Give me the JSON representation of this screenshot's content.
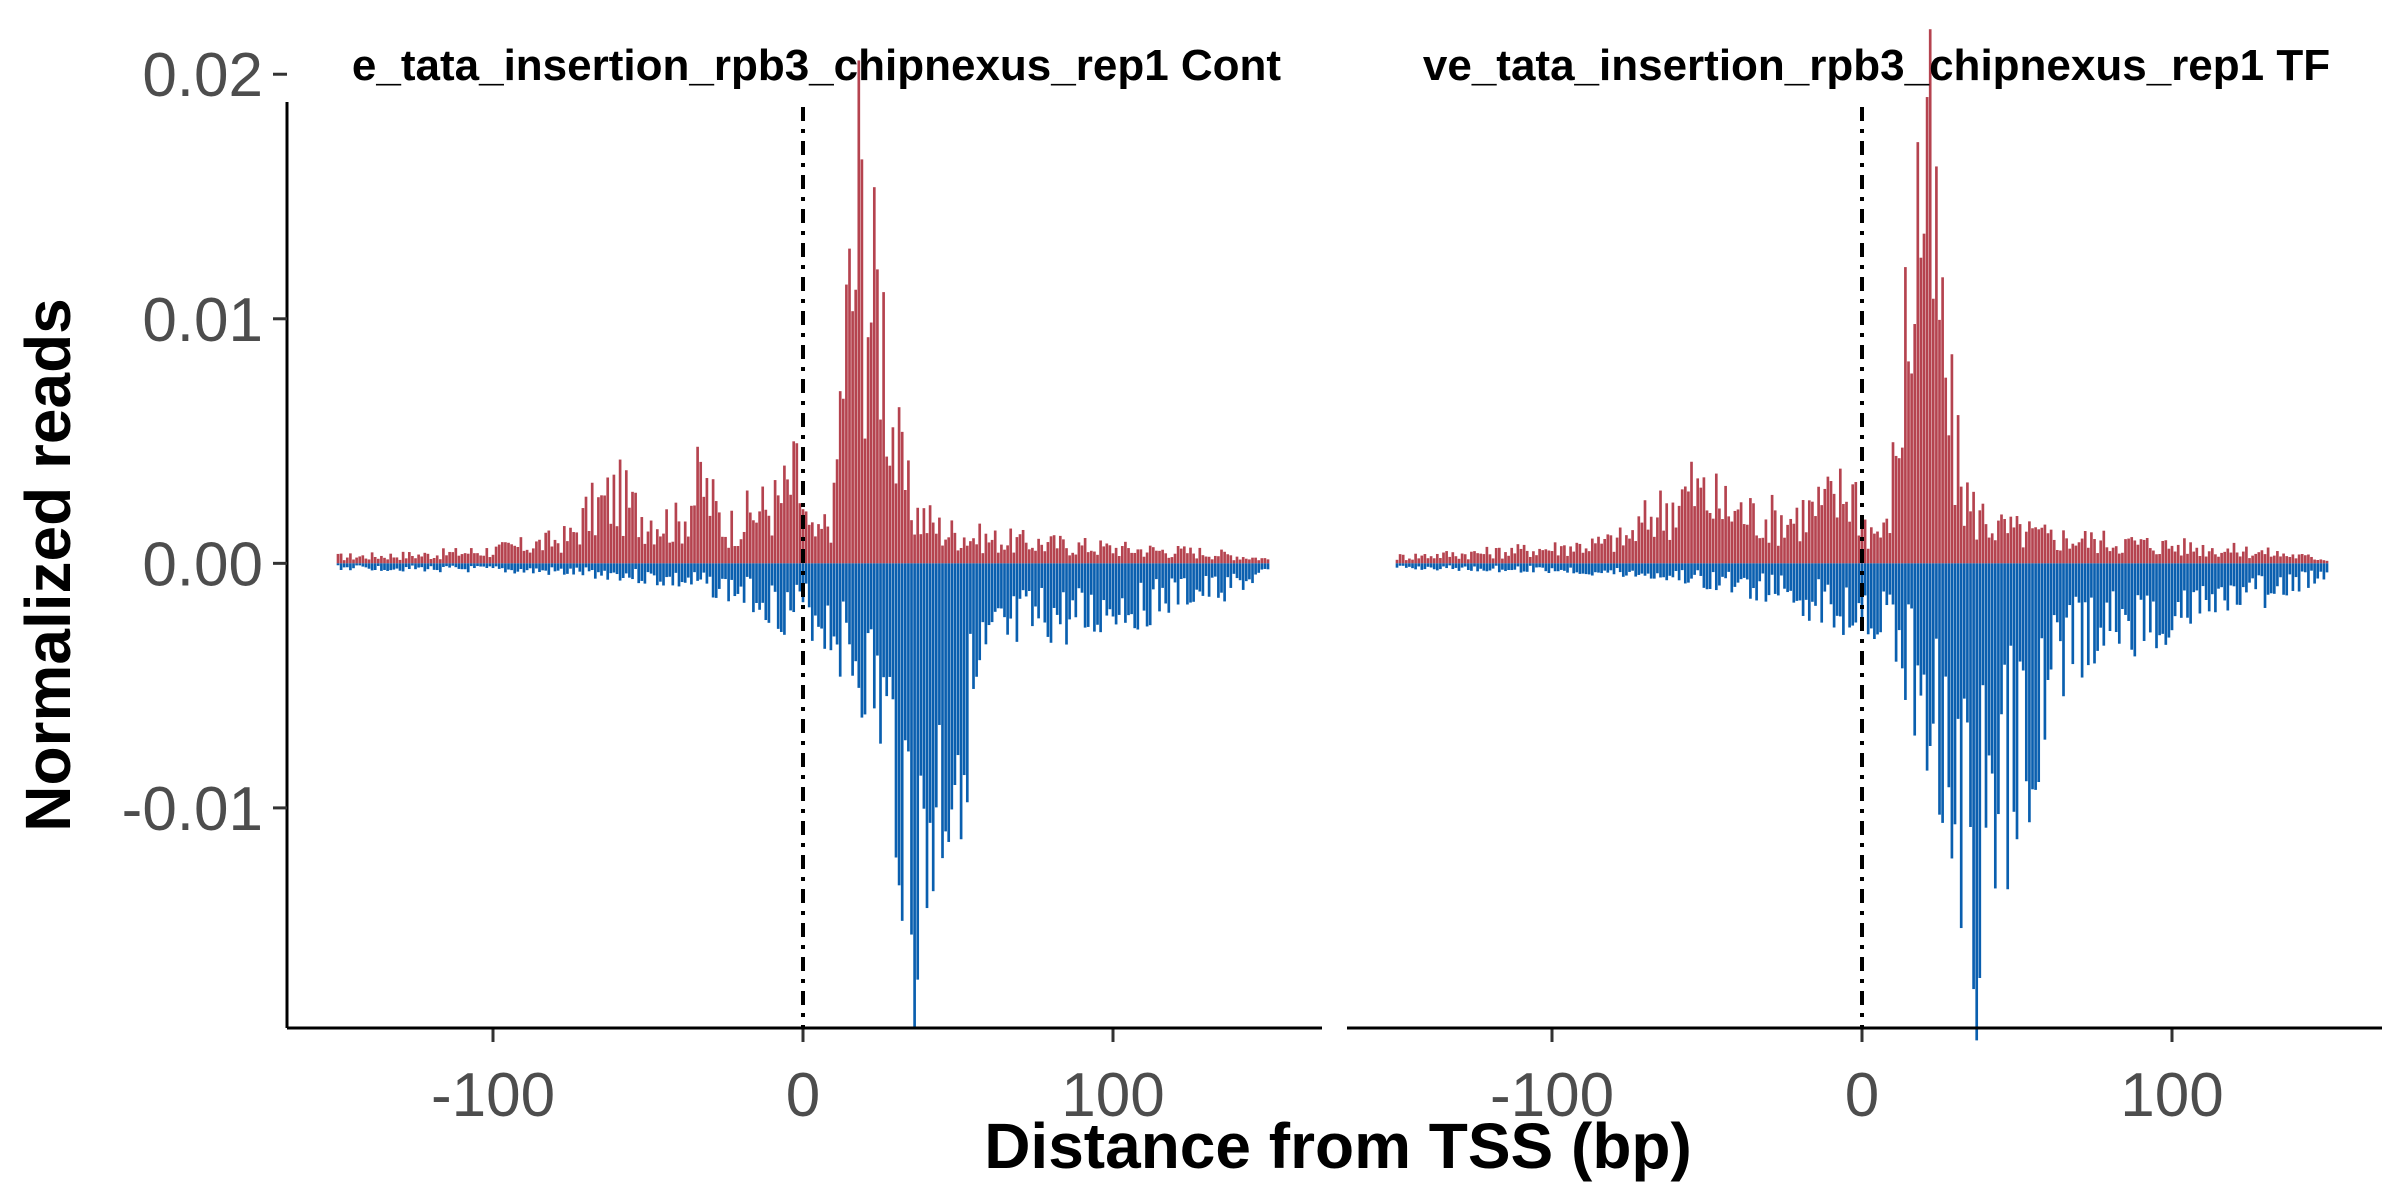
{
  "chart_data": {
    "type": "bar",
    "xlabel": "Distance from TSS (bp)",
    "ylabel": "Normalized reads",
    "ylim": [
      -0.019,
      0.0205
    ],
    "xlim": [
      -167,
      167
    ],
    "yticks": [
      0.02,
      0.01,
      0.0,
      -0.01
    ],
    "ytick_labels": [
      "0.02",
      "0.01",
      "0.00",
      "-0.01"
    ],
    "xticks": [
      -100,
      0,
      100
    ],
    "xtick_labels": [
      "-100",
      "0",
      "100"
    ],
    "reference_line_x": 0,
    "colors": {
      "positive_strand": "#B5434F",
      "negative_strand": "#0A5FAF"
    },
    "grid": false,
    "legend": "none",
    "panels": [
      {
        "title": "e_tata_insertion_rpb3_chipnexus_rep1 Cont",
        "positive_profile": [
          [
            -150,
            0.0003
          ],
          [
            -120,
            0.0004
          ],
          [
            -100,
            0.0006
          ],
          [
            -85,
            0.0009
          ],
          [
            -75,
            0.0012
          ],
          [
            -70,
            0.0022
          ],
          [
            -60,
            0.0032
          ],
          [
            -55,
            0.0025
          ],
          [
            -50,
            0.0022
          ],
          [
            -40,
            0.0018
          ],
          [
            -33,
            0.0038
          ],
          [
            -25,
            0.0016
          ],
          [
            -15,
            0.0024
          ],
          [
            -8,
            0.0028
          ],
          [
            -2,
            0.004
          ],
          [
            2,
            0.0014
          ],
          [
            5,
            0.0012
          ],
          [
            10,
            0.0025
          ],
          [
            13,
            0.0095
          ],
          [
            16,
            0.0125
          ],
          [
            18,
            0.0168
          ],
          [
            20,
            0.0145
          ],
          [
            23,
            0.0115
          ],
          [
            25,
            0.0128
          ],
          [
            27,
            0.0092
          ],
          [
            30,
            0.0052
          ],
          [
            35,
            0.0025
          ],
          [
            45,
            0.0015
          ],
          [
            60,
            0.0011
          ],
          [
            80,
            0.0009
          ],
          [
            100,
            0.0007
          ],
          [
            130,
            0.0005
          ],
          [
            150,
            0.0002
          ]
        ],
        "negative_profile": [
          [
            -150,
            -0.0002
          ],
          [
            -100,
            -0.0003
          ],
          [
            -60,
            -0.0005
          ],
          [
            -30,
            -0.001
          ],
          [
            -15,
            -0.0015
          ],
          [
            -5,
            -0.0022
          ],
          [
            0,
            -0.002
          ],
          [
            5,
            -0.0025
          ],
          [
            10,
            -0.003
          ],
          [
            15,
            -0.004
          ],
          [
            20,
            -0.005
          ],
          [
            25,
            -0.0065
          ],
          [
            30,
            -0.0095
          ],
          [
            33,
            -0.0115
          ],
          [
            35,
            -0.013
          ],
          [
            38,
            -0.0168
          ],
          [
            41,
            -0.012
          ],
          [
            45,
            -0.0105
          ],
          [
            50,
            -0.0085
          ],
          [
            55,
            -0.0065
          ],
          [
            60,
            -0.0045
          ],
          [
            70,
            -0.003
          ],
          [
            80,
            -0.0025
          ],
          [
            90,
            -0.0028
          ],
          [
            100,
            -0.002
          ],
          [
            110,
            -0.002
          ],
          [
            120,
            -0.0015
          ],
          [
            135,
            -0.0012
          ],
          [
            150,
            -0.0005
          ]
        ]
      },
      {
        "title": "ve_tata_insertion_rpb3_chipnexus_rep1 TF",
        "positive_profile": [
          [
            -150,
            0.0003
          ],
          [
            -120,
            0.0005
          ],
          [
            -100,
            0.0007
          ],
          [
            -85,
            0.0009
          ],
          [
            -75,
            0.0012
          ],
          [
            -68,
            0.0022
          ],
          [
            -60,
            0.0028
          ],
          [
            -55,
            0.0034
          ],
          [
            -45,
            0.0026
          ],
          [
            -35,
            0.0022
          ],
          [
            -25,
            0.002
          ],
          [
            -15,
            0.0025
          ],
          [
            -8,
            0.003
          ],
          [
            -3,
            0.0035
          ],
          [
            2,
            0.0015
          ],
          [
            8,
            0.0015
          ],
          [
            12,
            0.0065
          ],
          [
            14,
            0.01
          ],
          [
            16,
            0.0128
          ],
          [
            18,
            0.016
          ],
          [
            20,
            0.0185
          ],
          [
            22,
            0.016
          ],
          [
            25,
            0.0115
          ],
          [
            27,
            0.0085
          ],
          [
            30,
            0.005
          ],
          [
            35,
            0.0025
          ],
          [
            45,
            0.0016
          ],
          [
            60,
            0.0012
          ],
          [
            80,
            0.001
          ],
          [
            100,
            0.0008
          ],
          [
            130,
            0.0005
          ],
          [
            150,
            0.0002
          ]
        ],
        "negative_profile": [
          [
            -150,
            -0.0002
          ],
          [
            -100,
            -0.0003
          ],
          [
            -60,
            -0.0006
          ],
          [
            -30,
            -0.0012
          ],
          [
            -15,
            -0.0018
          ],
          [
            -5,
            -0.0022
          ],
          [
            0,
            -0.0018
          ],
          [
            5,
            -0.0025
          ],
          [
            10,
            -0.003
          ],
          [
            15,
            -0.0045
          ],
          [
            20,
            -0.006
          ],
          [
            25,
            -0.0075
          ],
          [
            30,
            -0.0095
          ],
          [
            33,
            -0.012
          ],
          [
            35,
            -0.0142
          ],
          [
            37,
            -0.0172
          ],
          [
            40,
            -0.0125
          ],
          [
            45,
            -0.0105
          ],
          [
            50,
            -0.009
          ],
          [
            55,
            -0.0075
          ],
          [
            60,
            -0.005
          ],
          [
            70,
            -0.0035
          ],
          [
            80,
            -0.003
          ],
          [
            100,
            -0.0025
          ],
          [
            110,
            -0.002
          ],
          [
            120,
            -0.0016
          ],
          [
            135,
            -0.0012
          ],
          [
            150,
            -0.0005
          ]
        ]
      }
    ]
  }
}
